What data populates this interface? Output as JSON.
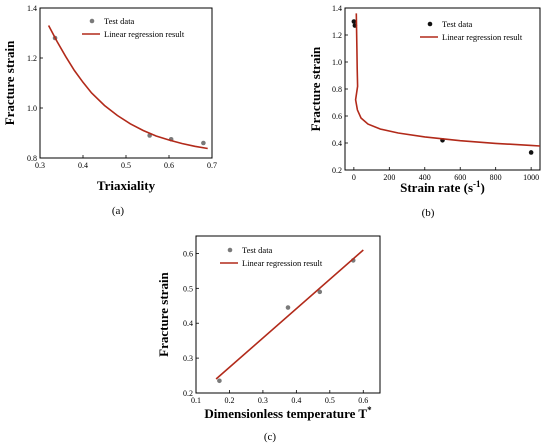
{
  "chart_data": [
    {
      "type": "scatter",
      "panel": "a",
      "caption": "(a)",
      "xlabel": "Triaxiality",
      "ylabel": "Fracture strain",
      "xlim": [
        0.3,
        0.7
      ],
      "ylim": [
        0.8,
        1.4
      ],
      "xticks": [
        "0.3",
        "0.4",
        "0.5",
        "0.6",
        "0.7"
      ],
      "yticks": [
        "0.8",
        "1.0",
        "1.2",
        "1.4"
      ],
      "legend_position": "top-right",
      "series": [
        {
          "name": "Test data",
          "kind": "points",
          "color": "#7a7a7a",
          "x": [
            0.335,
            0.555,
            0.605,
            0.68
          ],
          "y": [
            1.28,
            0.89,
            0.875,
            0.86
          ]
        },
        {
          "name": "Linear regression result",
          "kind": "line",
          "color": "#b22a1a",
          "x": [
            0.32,
            0.34,
            0.36,
            0.38,
            0.4,
            0.42,
            0.45,
            0.48,
            0.51,
            0.54,
            0.57,
            0.6,
            0.63,
            0.66,
            0.69
          ],
          "y": [
            1.33,
            1.265,
            1.205,
            1.15,
            1.103,
            1.06,
            1.01,
            0.97,
            0.937,
            0.91,
            0.888,
            0.872,
            0.858,
            0.847,
            0.838
          ]
        }
      ]
    },
    {
      "type": "scatter",
      "panel": "b",
      "caption": "(b)",
      "xlabel": "Strain rate (s",
      "xlabel_sup": "-1",
      "xlabel_end": ")",
      "ylabel": "Fracture strain",
      "xlim": [
        -50,
        1050
      ],
      "ylim": [
        0.2,
        1.4
      ],
      "xticks": [
        "0",
        "200",
        "400",
        "600",
        "800",
        "1000"
      ],
      "yticks": [
        "0.2",
        "0.4",
        "0.6",
        "0.8",
        "1.0",
        "1.2",
        "1.4"
      ],
      "legend_position": "top-right",
      "series": [
        {
          "name": "Test data",
          "kind": "points",
          "color": "#111111",
          "x": [
            0.001,
            0.01,
            500,
            1000
          ],
          "y": [
            1.3,
            1.27,
            0.42,
            0.33
          ]
        },
        {
          "name": "Linear regression result",
          "kind": "line",
          "color": "#b22a1a",
          "x": [
            0.3,
            1,
            2,
            5,
            10,
            20,
            40,
            80,
            150,
            250,
            400,
            600,
            800,
            1000,
            1050
          ],
          "y": [
            1.36,
            1.1,
            0.95,
            0.82,
            0.72,
            0.645,
            0.585,
            0.54,
            0.503,
            0.474,
            0.445,
            0.417,
            0.397,
            0.382,
            0.378
          ]
        }
      ]
    },
    {
      "type": "scatter",
      "panel": "c",
      "caption": "(c)",
      "xlabel": "Dimensionless temperature T",
      "xlabel_sup": "*",
      "ylabel": "Fracture strain",
      "xlim": [
        0.1,
        0.65
      ],
      "ylim": [
        0.2,
        0.65
      ],
      "xticks": [
        "0.1",
        "0.2",
        "0.3",
        "0.4",
        "0.5",
        "0.6"
      ],
      "yticks": [
        "0.2",
        "0.3",
        "0.4",
        "0.5",
        "0.6"
      ],
      "legend_position": "top-left",
      "series": [
        {
          "name": "Test data",
          "kind": "points",
          "color": "#7a7a7a",
          "x": [
            0.17,
            0.375,
            0.47,
            0.57
          ],
          "y": [
            0.235,
            0.445,
            0.49,
            0.58
          ]
        },
        {
          "name": "Linear regression result",
          "kind": "line",
          "color": "#b22a1a",
          "x": [
            0.16,
            0.6
          ],
          "y": [
            0.24,
            0.61
          ]
        }
      ]
    }
  ]
}
